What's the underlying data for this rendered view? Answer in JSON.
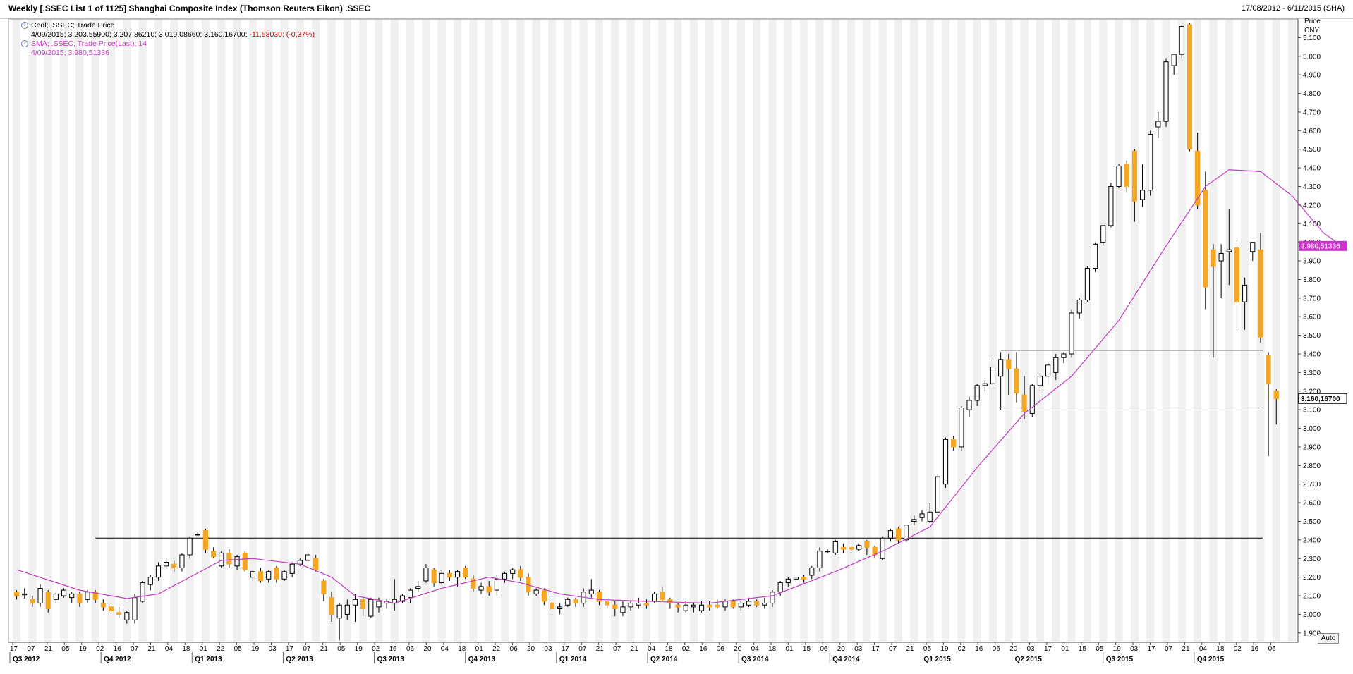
{
  "window": {
    "title": "Weekly [.SSEC List 1 of 1125] Shanghai Composite Index (Thomson Reuters Eikon) .SSEC",
    "date_range": "17/08/2012 - 6/11/2015 (SHA)"
  },
  "legend": {
    "candle_label": "Cndl; .SSEC; Trade Price",
    "candle_values": "4/09/2015; 3.203,55900; 3.207,86210; 3.019,08660; 3.160,16700;",
    "candle_change": "-11,58030; (-0,37%)",
    "sma_label": "SMA; .SSEC; Trade Price(Last);  14",
    "sma_values": "4/09/2015; 3.980,51336"
  },
  "axis": {
    "title_line1": "Price",
    "title_line2": "CNY",
    "auto_button": "Auto",
    "sma_tag": "3.980,51336",
    "last_tag": "3.160,16700"
  },
  "colors": {
    "up_body": "#ffffff",
    "down_body": "#f5a623",
    "wick": "#000000",
    "sma_line": "#c23cc2",
    "sma_tag_bg": "#cc33cc",
    "band": "#f0f0f0"
  },
  "chart_data": {
    "type": "candlestick",
    "frequency": "weekly",
    "ylim": [
      1850,
      5200
    ],
    "y_ticks": [
      1900,
      2000,
      2100,
      2200,
      2300,
      2400,
      2500,
      2600,
      2700,
      2800,
      2900,
      3000,
      3100,
      3200,
      3300,
      3400,
      3500,
      3600,
      3700,
      3800,
      3900,
      4000,
      4100,
      4200,
      4300,
      4400,
      4500,
      4600,
      4700,
      4800,
      4900,
      5000,
      5100
    ],
    "y_tick_labels": [
      "1.900",
      "2.000",
      "2.100",
      "2.200",
      "2.300",
      "2.400",
      "2.500",
      "2.600",
      "2.700",
      "2.800",
      "2.900",
      "3.000",
      "3.100",
      "3.200",
      "3.300",
      "3.400",
      "3.500",
      "3.600",
      "3.700",
      "3.800",
      "3.900",
      "4.000",
      "4.100",
      "4.200",
      "4.300",
      "4.400",
      "4.500",
      "4.600",
      "4.700",
      "4.800",
      "4.900",
      "5.000",
      "5.100"
    ],
    "week_labels": [
      "17",
      "07",
      "21",
      "05",
      "19",
      "02",
      "16",
      "07",
      "21",
      "04",
      "18",
      "01",
      "22",
      "05",
      "19",
      "03",
      "17",
      "07",
      "21",
      "05",
      "19",
      "02",
      "16",
      "06",
      "20",
      "04",
      "18",
      "01",
      "22",
      "06",
      "20",
      "03",
      "17",
      "07",
      "21",
      "07",
      "21",
      "04",
      "18",
      "02",
      "16",
      "06",
      "20",
      "04",
      "18",
      "01",
      "15",
      "06",
      "20",
      "03",
      "17",
      "07",
      "21",
      "05",
      "19",
      "02",
      "16",
      "06",
      "20",
      "03",
      "17",
      "01",
      "15",
      "05",
      "19",
      "03",
      "17",
      "07",
      "21",
      "04",
      "18",
      "02",
      "16",
      "06"
    ],
    "quarter_labels": [
      "Q3 2012",
      "Q4 2012",
      "Q1 2013",
      "Q2 2013",
      "Q3 2013",
      "Q4 2013",
      "Q1 2014",
      "Q2 2014",
      "Q3 2014",
      "Q4 2014",
      "Q1 2015",
      "Q2 2015",
      "Q3 2015",
      "Q4 2015"
    ],
    "ohlc": [
      [
        2120,
        2130,
        2080,
        2100
      ],
      [
        2105,
        2140,
        2085,
        2110
      ],
      [
        2080,
        2100,
        2040,
        2060
      ],
      [
        2060,
        2160,
        2040,
        2140
      ],
      [
        2120,
        2130,
        2010,
        2030
      ],
      [
        2080,
        2120,
        2060,
        2110
      ],
      [
        2100,
        2140,
        2090,
        2130
      ],
      [
        2090,
        2120,
        2060,
        2110
      ],
      [
        2110,
        2120,
        2040,
        2060
      ],
      [
        2080,
        2130,
        2060,
        2120
      ],
      [
        2120,
        2130,
        2060,
        2080
      ],
      [
        2060,
        2080,
        2020,
        2040
      ],
      [
        2040,
        2050,
        2000,
        2020
      ],
      [
        2010,
        2040,
        1980,
        2000
      ],
      [
        1970,
        2020,
        1950,
        2010
      ],
      [
        1970,
        2110,
        1950,
        2090
      ],
      [
        2070,
        2180,
        2060,
        2170
      ],
      [
        2160,
        2210,
        2130,
        2200
      ],
      [
        2200,
        2280,
        2180,
        2260
      ],
      [
        2260,
        2300,
        2240,
        2280
      ],
      [
        2270,
        2290,
        2230,
        2250
      ],
      [
        2250,
        2330,
        2230,
        2320
      ],
      [
        2320,
        2420,
        2300,
        2410
      ],
      [
        2430,
        2440,
        2420,
        2430
      ],
      [
        2450,
        2460,
        2330,
        2350
      ],
      [
        2340,
        2360,
        2300,
        2310
      ],
      [
        2260,
        2340,
        2250,
        2330
      ],
      [
        2330,
        2350,
        2250,
        2270
      ],
      [
        2260,
        2320,
        2240,
        2310
      ],
      [
        2330,
        2340,
        2230,
        2240
      ],
      [
        2200,
        2240,
        2180,
        2230
      ],
      [
        2230,
        2250,
        2170,
        2180
      ],
      [
        2190,
        2240,
        2170,
        2230
      ],
      [
        2250,
        2260,
        2170,
        2190
      ],
      [
        2190,
        2240,
        2180,
        2230
      ],
      [
        2220,
        2280,
        2200,
        2270
      ],
      [
        2270,
        2300,
        2260,
        2290
      ],
      [
        2290,
        2340,
        2280,
        2320
      ],
      [
        2300,
        2320,
        2230,
        2240
      ],
      [
        2180,
        2190,
        2070,
        2110
      ],
      [
        2090,
        2120,
        1960,
        2000
      ],
      [
        1980,
        2060,
        1860,
        2050
      ],
      [
        2000,
        2080,
        1970,
        2050
      ],
      [
        2050,
        2110,
        1960,
        2080
      ],
      [
        2080,
        2090,
        1990,
        2030
      ],
      [
        1990,
        2090,
        1980,
        2080
      ],
      [
        2040,
        2090,
        2010,
        2070
      ],
      [
        2060,
        2080,
        2030,
        2070
      ],
      [
        2060,
        2190,
        2020,
        2080
      ],
      [
        2070,
        2110,
        2060,
        2100
      ],
      [
        2090,
        2140,
        2060,
        2130
      ],
      [
        2140,
        2180,
        2120,
        2150
      ],
      [
        2180,
        2270,
        2170,
        2250
      ],
      [
        2240,
        2250,
        2150,
        2170
      ],
      [
        2170,
        2240,
        2160,
        2220
      ],
      [
        2220,
        2240,
        2180,
        2200
      ],
      [
        2200,
        2240,
        2150,
        2230
      ],
      [
        2250,
        2260,
        2190,
        2200
      ],
      [
        2190,
        2210,
        2120,
        2140
      ],
      [
        2130,
        2170,
        2110,
        2150
      ],
      [
        2150,
        2180,
        2100,
        2120
      ],
      [
        2130,
        2210,
        2100,
        2190
      ],
      [
        2190,
        2230,
        2170,
        2220
      ],
      [
        2220,
        2250,
        2190,
        2240
      ],
      [
        2240,
        2260,
        2180,
        2200
      ],
      [
        2200,
        2220,
        2100,
        2120
      ],
      [
        2110,
        2140,
        2100,
        2130
      ],
      [
        2130,
        2140,
        2050,
        2070
      ],
      [
        2060,
        2100,
        2010,
        2030
      ],
      [
        2030,
        2060,
        2000,
        2040
      ],
      [
        2050,
        2090,
        2040,
        2080
      ],
      [
        2080,
        2090,
        2040,
        2060
      ],
      [
        2060,
        2140,
        2040,
        2120
      ],
      [
        2110,
        2190,
        2090,
        2130
      ],
      [
        2120,
        2130,
        2050,
        2070
      ],
      [
        2070,
        2080,
        2030,
        2050
      ],
      [
        2050,
        2070,
        1990,
        2030
      ],
      [
        2010,
        2070,
        1990,
        2040
      ],
      [
        2040,
        2070,
        2020,
        2060
      ],
      [
        2050,
        2090,
        2030,
        2060
      ],
      [
        2060,
        2080,
        2030,
        2050
      ],
      [
        2070,
        2120,
        2060,
        2110
      ],
      [
        2120,
        2150,
        2070,
        2080
      ],
      [
        2080,
        2090,
        2030,
        2060
      ],
      [
        2050,
        2060,
        2010,
        2040
      ],
      [
        2020,
        2070,
        2010,
        2050
      ],
      [
        2040,
        2060,
        2010,
        2050
      ],
      [
        2020,
        2070,
        2010,
        2050
      ],
      [
        2050,
        2070,
        2020,
        2040
      ],
      [
        2050,
        2080,
        2030,
        2040
      ],
      [
        2040,
        2080,
        2020,
        2070
      ],
      [
        2070,
        2080,
        2030,
        2040
      ],
      [
        2040,
        2070,
        2020,
        2060
      ],
      [
        2050,
        2090,
        2040,
        2070
      ],
      [
        2070,
        2080,
        2040,
        2050
      ],
      [
        2050,
        2090,
        2030,
        2060
      ],
      [
        2060,
        2130,
        2040,
        2120
      ],
      [
        2120,
        2180,
        2100,
        2170
      ],
      [
        2170,
        2200,
        2150,
        2190
      ],
      [
        2190,
        2210,
        2170,
        2200
      ],
      [
        2200,
        2210,
        2170,
        2190
      ],
      [
        2210,
        2260,
        2190,
        2250
      ],
      [
        2250,
        2360,
        2230,
        2340
      ],
      [
        2340,
        2350,
        2330,
        2340
      ],
      [
        2330,
        2400,
        2320,
        2390
      ],
      [
        2360,
        2380,
        2330,
        2350
      ],
      [
        2360,
        2370,
        2340,
        2350
      ],
      [
        2350,
        2380,
        2340,
        2370
      ],
      [
        2390,
        2400,
        2320,
        2360
      ],
      [
        2360,
        2370,
        2300,
        2320
      ],
      [
        2300,
        2420,
        2290,
        2410
      ],
      [
        2410,
        2460,
        2390,
        2450
      ],
      [
        2460,
        2470,
        2380,
        2400
      ],
      [
        2400,
        2480,
        2390,
        2480
      ],
      [
        2500,
        2530,
        2480,
        2510
      ],
      [
        2520,
        2560,
        2500,
        2540
      ],
      [
        2500,
        2600,
        2490,
        2550
      ],
      [
        2550,
        2750,
        2530,
        2740
      ],
      [
        2700,
        2950,
        2680,
        2940
      ],
      [
        2940,
        2960,
        2880,
        2900
      ],
      [
        2900,
        3120,
        2880,
        3110
      ],
      [
        3100,
        3170,
        3060,
        3150
      ],
      [
        3150,
        3240,
        3120,
        3230
      ],
      [
        3230,
        3260,
        3200,
        3240
      ],
      [
        3240,
        3380,
        3150,
        3330
      ],
      [
        3280,
        3410,
        3100,
        3370
      ],
      [
        3370,
        3400,
        3180,
        3320
      ],
      [
        3320,
        3410,
        3140,
        3190
      ],
      [
        3180,
        3280,
        3050,
        3090
      ],
      [
        3080,
        3240,
        3060,
        3230
      ],
      [
        3230,
        3300,
        3200,
        3280
      ],
      [
        3280,
        3360,
        3240,
        3340
      ],
      [
        3300,
        3400,
        3260,
        3380
      ],
      [
        3380,
        3410,
        3350,
        3400
      ],
      [
        3400,
        3640,
        3380,
        3620
      ],
      [
        3620,
        3700,
        3590,
        3690
      ],
      [
        3690,
        3870,
        3680,
        3860
      ],
      [
        3860,
        4000,
        3840,
        3990
      ],
      [
        4000,
        4090,
        3980,
        4090
      ],
      [
        4090,
        4320,
        4080,
        4300
      ],
      [
        4300,
        4420,
        4290,
        4410
      ],
      [
        4420,
        4440,
        4270,
        4300
      ],
      [
        4490,
        4500,
        4110,
        4220
      ],
      [
        4230,
        4420,
        4190,
        4280
      ],
      [
        4280,
        4600,
        4250,
        4580
      ],
      [
        4620,
        4700,
        4560,
        4650
      ],
      [
        4650,
        4990,
        4620,
        4970
      ],
      [
        4950,
        5010,
        4900,
        5010
      ],
      [
        5010,
        5170,
        4990,
        5160
      ],
      [
        5170,
        5180,
        4490,
        4500
      ],
      [
        4490,
        4590,
        4180,
        4200
      ],
      [
        4280,
        4380,
        3640,
        3760
      ],
      [
        3960,
        3990,
        3380,
        3870
      ],
      [
        3900,
        3990,
        3700,
        3940
      ],
      [
        3950,
        4180,
        3770,
        3960
      ],
      [
        3970,
        4010,
        3540,
        3680
      ],
      [
        3680,
        3810,
        3530,
        3770
      ],
      [
        3950,
        4000,
        3900,
        4000
      ],
      [
        3960,
        4050,
        3460,
        3490
      ],
      [
        3390,
        3410,
        2850,
        3240
      ],
      [
        3200,
        3210,
        3020,
        3160
      ]
    ],
    "sma_period": 14,
    "sma": [
      [
        0,
        2240
      ],
      [
        8,
        2130
      ],
      [
        14,
        2085
      ],
      [
        18,
        2110
      ],
      [
        22,
        2200
      ],
      [
        26,
        2290
      ],
      [
        30,
        2300
      ],
      [
        36,
        2270
      ],
      [
        40,
        2200
      ],
      [
        43,
        2100
      ],
      [
        48,
        2060
      ],
      [
        54,
        2140
      ],
      [
        60,
        2200
      ],
      [
        64,
        2170
      ],
      [
        69,
        2110
      ],
      [
        74,
        2080
      ],
      [
        80,
        2070
      ],
      [
        88,
        2060
      ],
      [
        96,
        2100
      ],
      [
        104,
        2230
      ],
      [
        110,
        2340
      ],
      [
        116,
        2470
      ],
      [
        122,
        2790
      ],
      [
        128,
        3080
      ],
      [
        134,
        3280
      ],
      [
        140,
        3580
      ],
      [
        146,
        3980
      ],
      [
        151,
        4300
      ],
      [
        154,
        4390
      ],
      [
        158,
        4380
      ],
      [
        162,
        4250
      ],
      [
        166,
        4050
      ],
      [
        168,
        3990
      ]
    ],
    "hlines": [
      {
        "y": 2410,
        "from": 10,
        "to": 170
      },
      {
        "y": 3420,
        "from": 125,
        "to": 170
      },
      {
        "y": 3110,
        "from": 125,
        "to": 170
      }
    ],
    "last_value": 3160.167,
    "sma_last_value": 3980.51336
  }
}
